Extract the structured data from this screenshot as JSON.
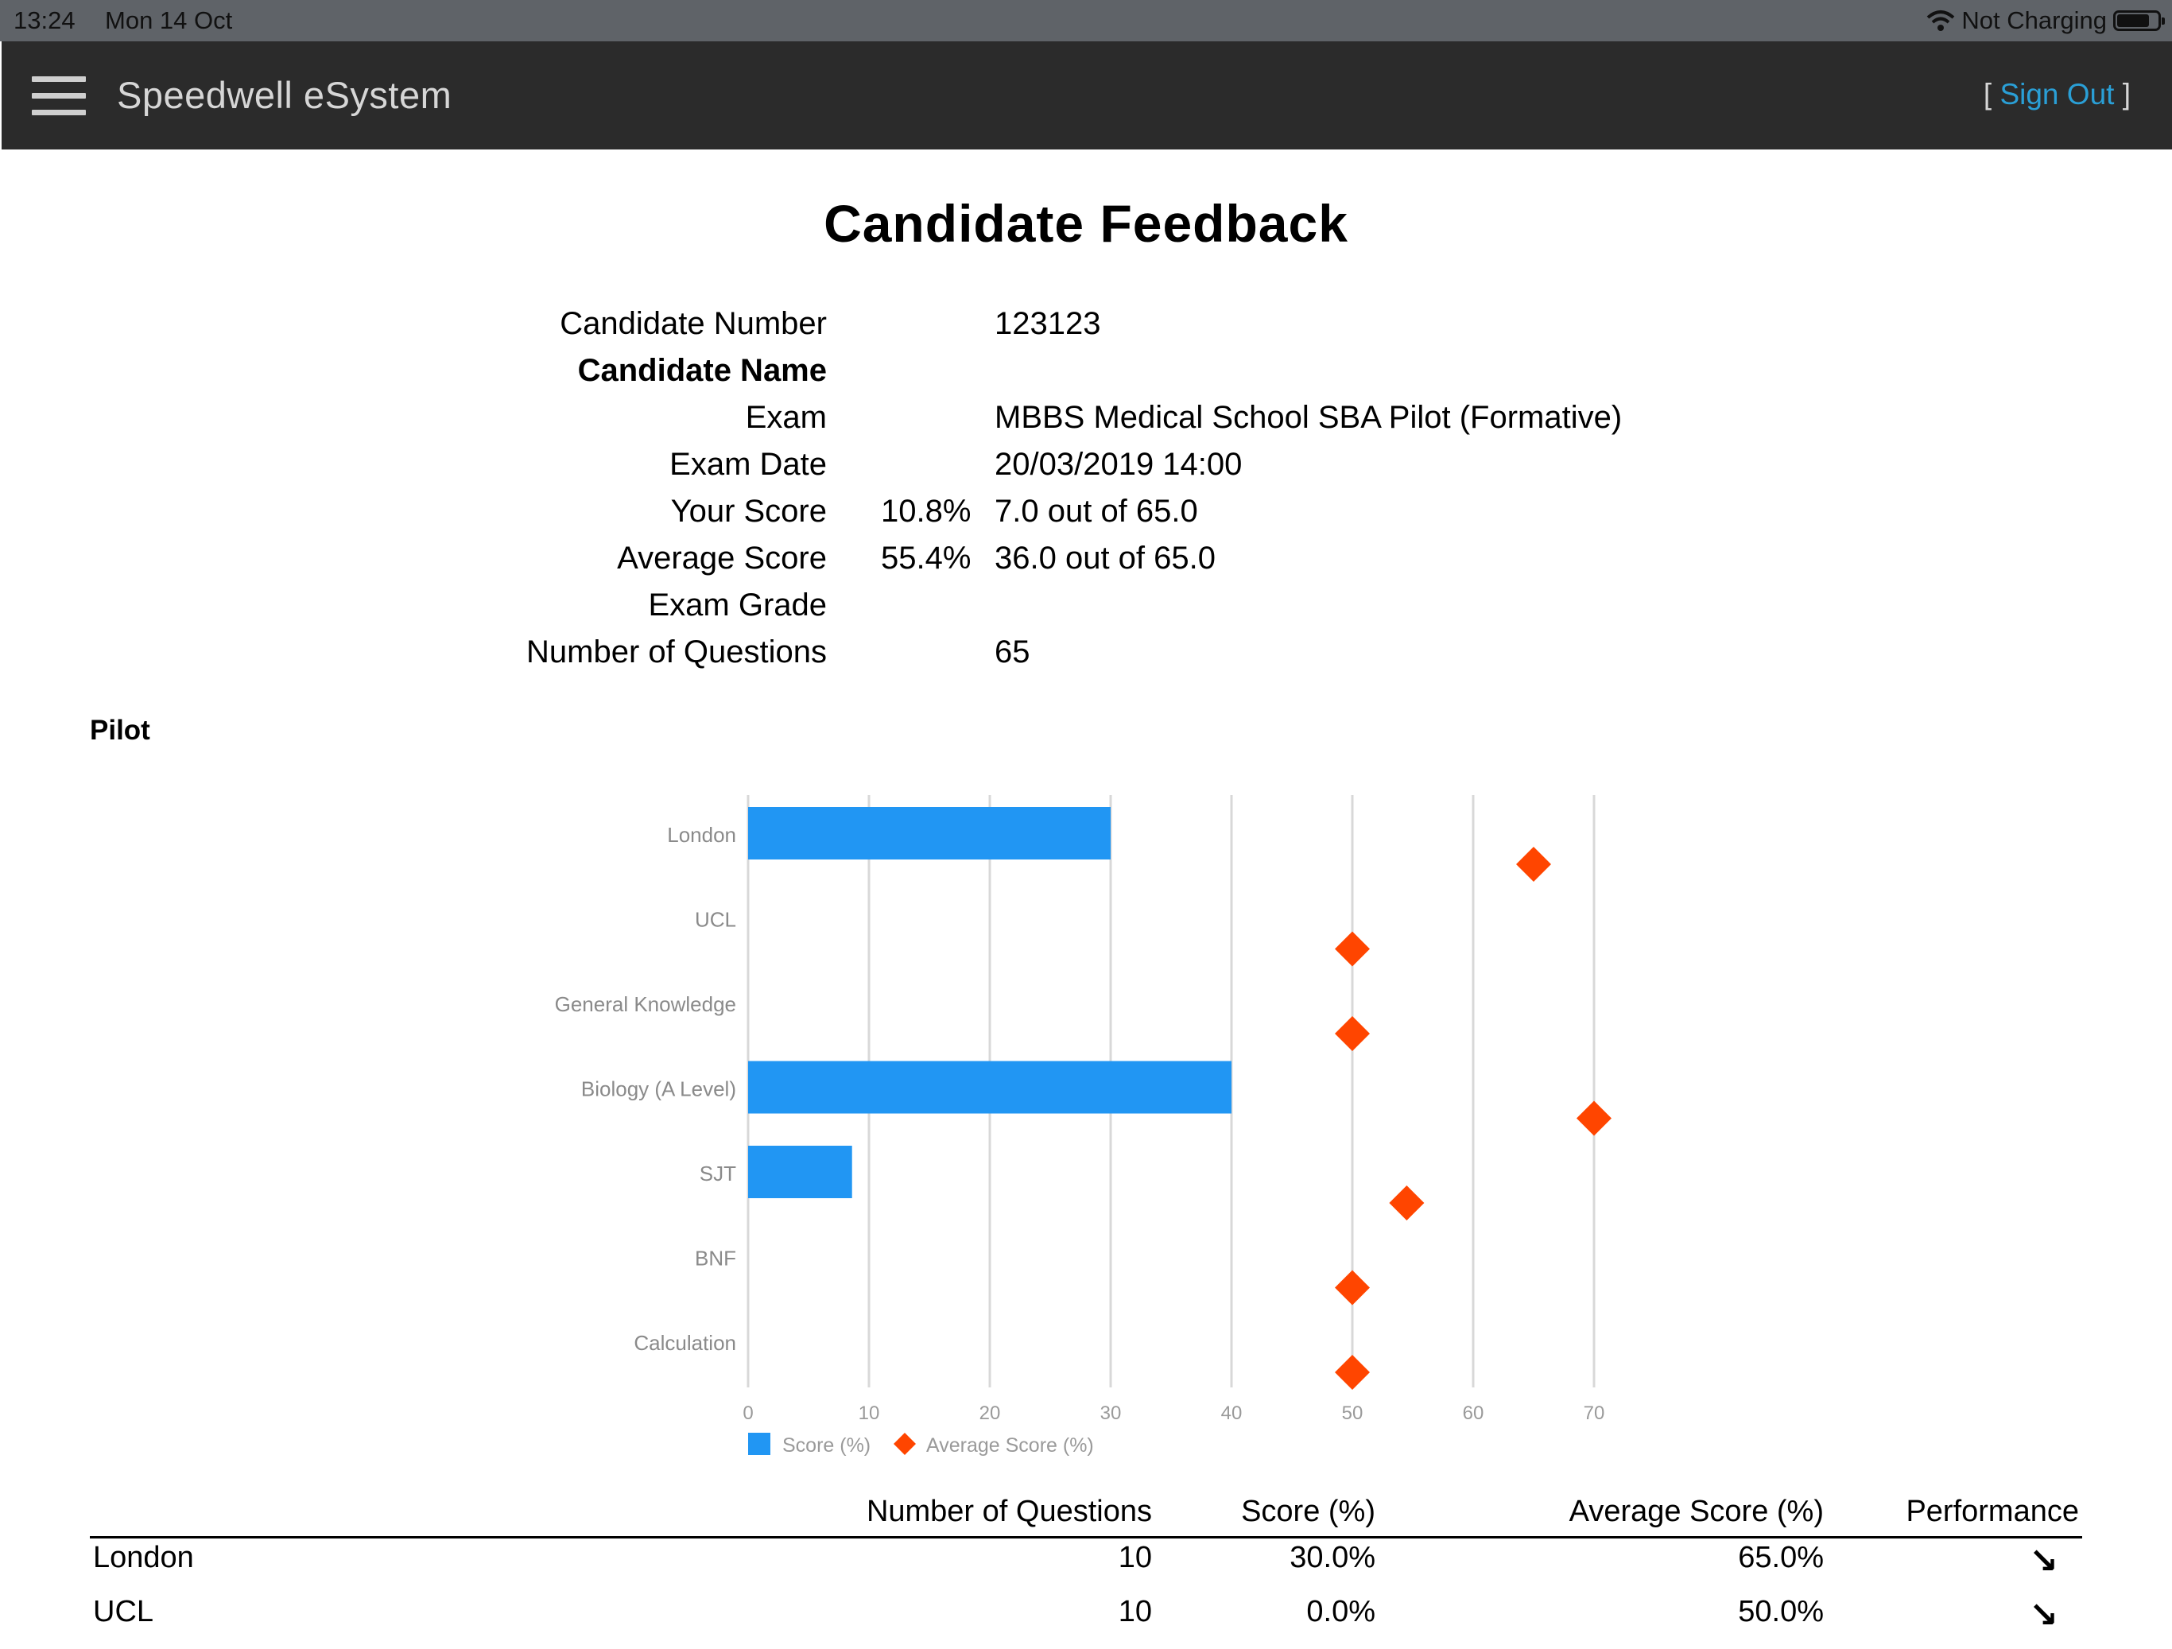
{
  "status_bar": {
    "time": "13:24",
    "date": "Mon 14 Oct",
    "charging": "Not Charging"
  },
  "navbar": {
    "brand": "Speedwell eSystem",
    "sign_out_open": "[",
    "sign_out_label": "Sign Out",
    "sign_out_close": "]"
  },
  "page": {
    "title": "Candidate Feedback"
  },
  "candidate": {
    "number_label": "Candidate Number",
    "number_value": "123123",
    "name_label": "Candidate Name",
    "name_value": "",
    "exam_label": "Exam",
    "exam_value": "MBBS Medical School SBA Pilot (Formative)",
    "exam_date_label": "Exam Date",
    "exam_date_value": "20/03/2019 14:00",
    "your_score_label": "Your Score",
    "your_score_pct": "10.8%",
    "your_score_value": "7.0 out of 65.0",
    "avg_score_label": "Average Score",
    "avg_score_pct": "55.4%",
    "avg_score_value": "36.0 out of 65.0",
    "grade_label": "Exam Grade",
    "grade_value": "",
    "questions_label": "Number of Questions",
    "questions_value": "65"
  },
  "section": {
    "label": "Pilot"
  },
  "chart_data": {
    "type": "bar",
    "orientation": "horizontal",
    "categories": [
      "London",
      "UCL",
      "General Knowledge",
      "Biology (A Level)",
      "SJT",
      "BNF",
      "Calculation"
    ],
    "series": [
      {
        "name": "Score (%)",
        "type": "bar",
        "color": "#2196f3",
        "values": [
          30,
          0,
          0,
          40,
          8.6,
          0,
          0
        ]
      },
      {
        "name": "Average Score (%)",
        "type": "scatter",
        "marker": "diamond",
        "color": "#ff4500",
        "values": [
          65,
          50,
          50,
          70,
          54.5,
          50,
          50
        ]
      }
    ],
    "xticks": [
      0,
      10,
      20,
      30,
      40,
      50,
      60,
      70
    ],
    "xlim": [
      0,
      70
    ],
    "grid": true,
    "legend": "bottom-left"
  },
  "table": {
    "headers": [
      "Number of Questions",
      "Score (%)",
      "Average Score (%)",
      "Performance"
    ],
    "rows": [
      {
        "name": "London",
        "questions": "10",
        "score": "30.0%",
        "average": "65.0%",
        "performance": "↘"
      },
      {
        "name": "UCL",
        "questions": "10",
        "score": "0.0%",
        "average": "50.0%",
        "performance": "↘"
      }
    ]
  }
}
